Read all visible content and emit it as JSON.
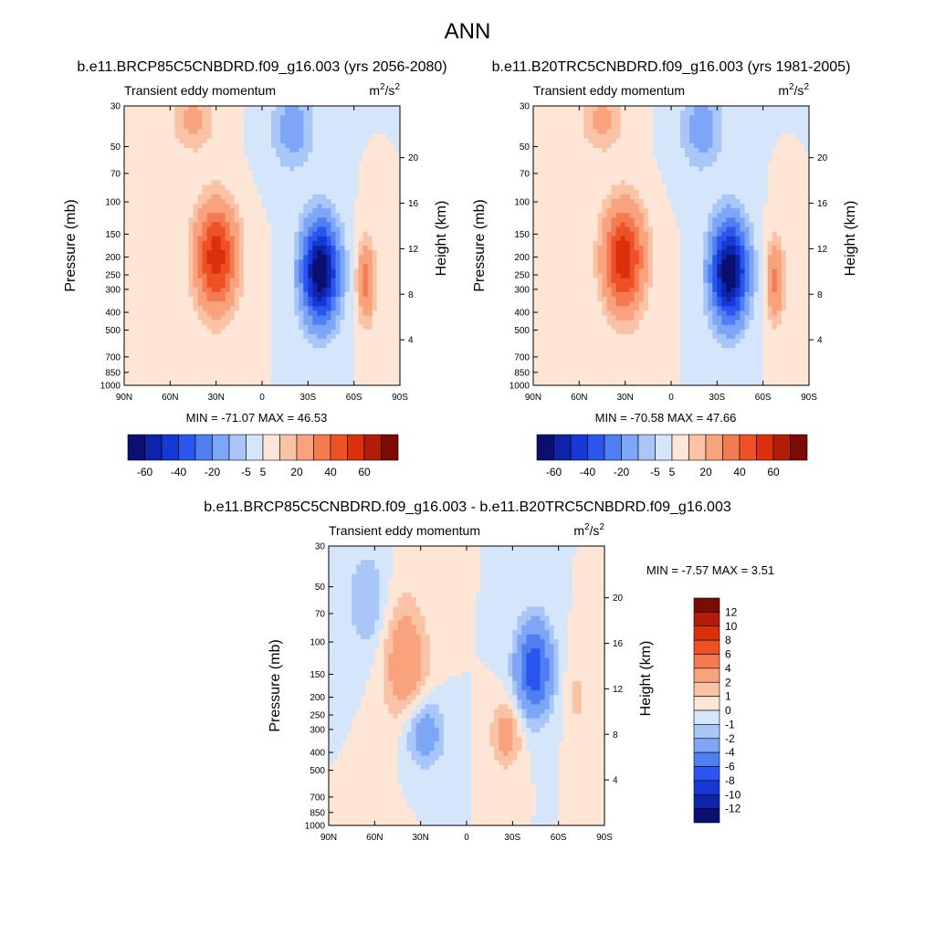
{
  "page_title": "ANN",
  "colormaps": {
    "blue_red": [
      "#0a0f70",
      "#0c24a8",
      "#1538d6",
      "#2a55ee",
      "#4f7ff3",
      "#7ea6f6",
      "#a9c6f8",
      "#d5e6fb",
      "#fde6d6",
      "#fbc3a6",
      "#f8a37d",
      "#f47a52",
      "#ee5224",
      "#dc300c",
      "#b51c08",
      "#7d0b05"
    ]
  },
  "chart_data": [
    {
      "type": "contour",
      "id": "p1",
      "title": "b.e11.BRCP85C5CNBDRD.f09_g16.003 (yrs 2056-2080)",
      "left_label": "Transient eddy momentum",
      "units_base": "m",
      "units_sup1": "2",
      "units_mid": "/s",
      "units_sup2": "2",
      "ylabel": "Pressure (mb)",
      "ylabel_right": "Height (km)",
      "x_ticks": [
        "90N",
        "60N",
        "30N",
        "0",
        "30S",
        "60S",
        "90S"
      ],
      "x_range": [
        90,
        -90
      ],
      "y_ticks": [
        "30",
        "50",
        "70",
        "100",
        "150",
        "200",
        "250",
        "300",
        "400",
        "500",
        "700",
        "850",
        "1000"
      ],
      "y_range": [
        30,
        1000
      ],
      "height_ticks": [
        "20",
        "16",
        "12",
        "8",
        "4"
      ],
      "min_max": "MIN = -71.07  MAX = 46.53",
      "min": -71.07,
      "max": 46.53,
      "features": [
        {
          "lat": 30,
          "p": 200,
          "amp": 46.5,
          "sx": 9,
          "sy": 0.45
        },
        {
          "lat": -38,
          "p": 240,
          "amp": -71.1,
          "sx": 8,
          "sy": 0.42
        },
        {
          "lat": -68,
          "p": 270,
          "amp": 24,
          "sx": 4,
          "sy": 0.35
        },
        {
          "lat": 45,
          "p": 35,
          "amp": 12,
          "sx": 10,
          "sy": 0.3
        },
        {
          "lat": -20,
          "p": 40,
          "amp": -14,
          "sx": 10,
          "sy": 0.35
        }
      ],
      "colorbar_labels": [
        "-60",
        "-40",
        "-20",
        "-5",
        "5",
        "20",
        "40",
        "60"
      ]
    },
    {
      "type": "contour",
      "id": "p2",
      "title": "b.e11.B20TRC5CNBDRD.f09_g16.003 (yrs 1981-2005)",
      "left_label": "Transient eddy momentum",
      "units_base": "m",
      "units_sup1": "2",
      "units_mid": "/s",
      "units_sup2": "2",
      "ylabel": "Pressure (mb)",
      "ylabel_right": "Height (km)",
      "x_ticks": [
        "90N",
        "60N",
        "30N",
        "0",
        "30S",
        "60S",
        "90S"
      ],
      "x_range": [
        90,
        -90
      ],
      "y_ticks": [
        "30",
        "50",
        "70",
        "100",
        "150",
        "200",
        "250",
        "300",
        "400",
        "500",
        "700",
        "850",
        "1000"
      ],
      "y_range": [
        30,
        1000
      ],
      "height_ticks": [
        "20",
        "16",
        "12",
        "8",
        "4"
      ],
      "min_max": "MIN = -70.58  MAX = 47.66",
      "min": -70.58,
      "max": 47.66,
      "features": [
        {
          "lat": 31,
          "p": 205,
          "amp": 47.7,
          "sx": 9,
          "sy": 0.45
        },
        {
          "lat": -38,
          "p": 240,
          "amp": -70.6,
          "sx": 8,
          "sy": 0.42
        },
        {
          "lat": -68,
          "p": 270,
          "amp": 22,
          "sx": 4,
          "sy": 0.35
        },
        {
          "lat": 45,
          "p": 35,
          "amp": 12,
          "sx": 10,
          "sy": 0.3
        },
        {
          "lat": -20,
          "p": 40,
          "amp": -14,
          "sx": 10,
          "sy": 0.35
        }
      ],
      "colorbar_labels": [
        "-60",
        "-40",
        "-20",
        "-5",
        "5",
        "20",
        "40",
        "60"
      ]
    },
    {
      "type": "contour",
      "id": "p3",
      "title": "b.e11.BRCP85C5CNBDRD.f09_g16.003 - b.e11.B20TRC5CNBDRD.f09_g16.003",
      "left_label": "Transient eddy momentum",
      "units_base": "m",
      "units_sup1": "2",
      "units_mid": "/s",
      "units_sup2": "2",
      "ylabel": "Pressure (mb)",
      "ylabel_right": "Height (km)",
      "x_ticks": [
        "90N",
        "60N",
        "30N",
        "0",
        "30S",
        "60S",
        "90S"
      ],
      "x_range": [
        90,
        -90
      ],
      "y_ticks": [
        "30",
        "50",
        "70",
        "100",
        "150",
        "200",
        "250",
        "300",
        "400",
        "500",
        "700",
        "850",
        "1000"
      ],
      "y_range": [
        30,
        1000
      ],
      "height_ticks": [
        "20",
        "16",
        "12",
        "8",
        "4"
      ],
      "min_max": "MIN =  -7.57  MAX =   3.51",
      "min": -7.57,
      "max": 3.51,
      "features": [
        {
          "lat": 40,
          "p": 130,
          "amp": 3.5,
          "sx": 10,
          "sy": 0.55
        },
        {
          "lat": -44,
          "p": 140,
          "amp": -7.6,
          "sx": 8,
          "sy": 0.4
        },
        {
          "lat": 28,
          "p": 310,
          "amp": -3.5,
          "sx": 9,
          "sy": 0.3
        },
        {
          "lat": -26,
          "p": 320,
          "amp": 3.0,
          "sx": 7,
          "sy": 0.28
        },
        {
          "lat": 65,
          "p": 60,
          "amp": -2.0,
          "sx": 9,
          "sy": 0.45
        },
        {
          "lat": -72,
          "p": 200,
          "amp": 1.2,
          "sx": 5,
          "sy": 0.4
        }
      ],
      "colorbar_labels": [
        "12",
        "10",
        "8",
        "6",
        "4",
        "2",
        "1",
        "0",
        "-1",
        "-2",
        "-4",
        "-6",
        "-8",
        "-10",
        "-12"
      ]
    }
  ]
}
